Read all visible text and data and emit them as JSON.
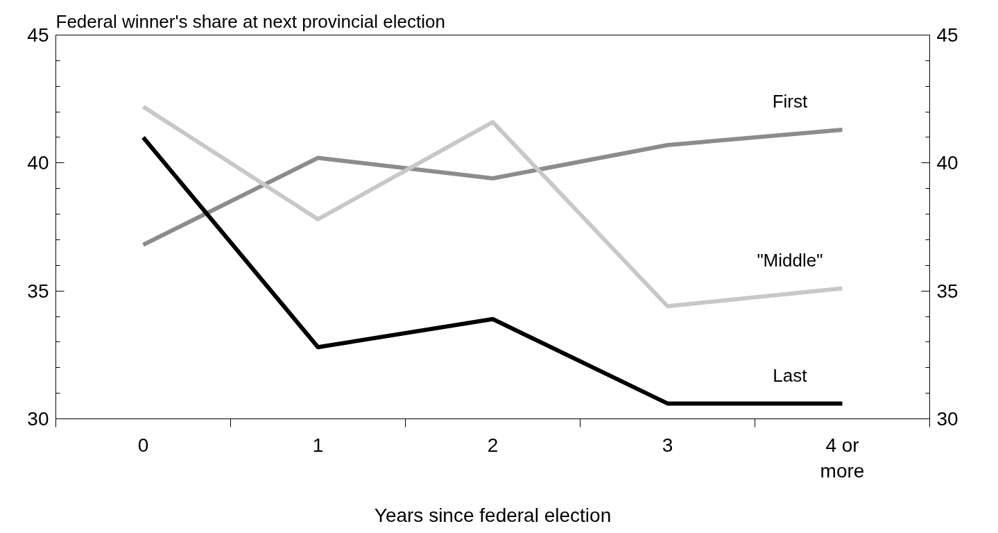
{
  "chart_data": {
    "type": "line",
    "title": "Federal winner's share at next provincial election",
    "xlabel": "Years since federal election",
    "categories": [
      "0",
      "1",
      "2",
      "3",
      "4 or\nmore"
    ],
    "series": [
      {
        "name": "First",
        "color": "#8c8c8c",
        "values": [
          36.8,
          40.2,
          39.4,
          40.7,
          41.3
        ]
      },
      {
        "name": "\"Middle\"",
        "color": "#c8c8c8",
        "values": [
          42.2,
          37.8,
          41.6,
          34.4,
          35.1
        ]
      },
      {
        "name": "Last",
        "color": "#000000",
        "values": [
          41.0,
          32.8,
          33.9,
          30.6,
          30.6
        ]
      }
    ],
    "ylim": [
      30,
      45
    ],
    "yticks": [
      30,
      35,
      40,
      45
    ],
    "y2lim": [
      30,
      45
    ],
    "y2ticks": [
      30,
      35,
      40,
      45
    ],
    "grid": false,
    "marker": "none",
    "line_style": "solid"
  }
}
